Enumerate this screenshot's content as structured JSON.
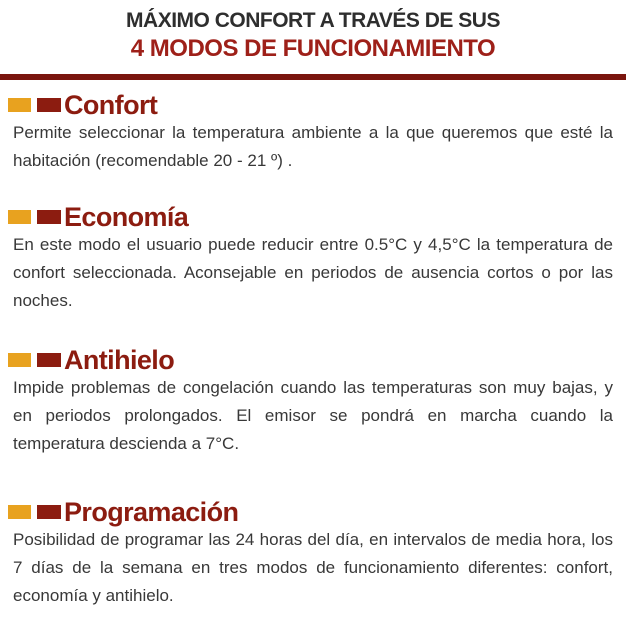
{
  "header": {
    "title_line1": "MÁXIMO CONFORT A TRAVÉS DE SUS",
    "title_line2": "4 MODOS DE FUNCIONAMIENTO"
  },
  "colors": {
    "accent_orange": "#E8A21F",
    "accent_maroon": "#8C1C10",
    "title_red": "#9E2019",
    "rule_red": "#7A150E",
    "body_text": "#383838"
  },
  "icons": {
    "bullet_left": "orange-square",
    "bullet_right": "maroon-square"
  },
  "sections": [
    {
      "title": "Confort",
      "body": "Permite seleccionar la temperatura ambiente a la que queremos que esté la habitación (recomendable 20 - 21 º) ."
    },
    {
      "title": "Economía",
      "body": "En este modo el usuario puede reducir entre 0.5°C y 4,5°C la temperatura de confort seleccionada. Aconsejable en periodos de ausencia cortos o por las noches."
    },
    {
      "title": "Antihielo",
      "body": "Impide problemas de congelación cuando las temperaturas son muy bajas, y en periodos prolongados. El emisor se pondrá en marcha cuando la temperatura descienda a 7°C."
    },
    {
      "title": "Programación",
      "body": "Posibilidad de programar las 24 horas del día, en intervalos de media hora, los 7 días de la semana en tres modos de funcionamiento diferentes: confort, economía y antihielo."
    }
  ]
}
